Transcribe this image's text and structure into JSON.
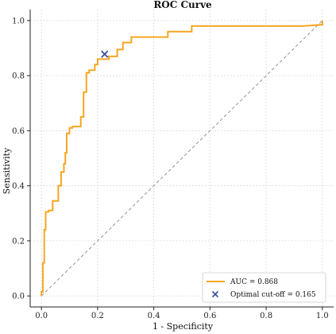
{
  "chart_data": {
    "type": "line",
    "title": "ROC Curve",
    "xlabel": "1 - Specificity",
    "ylabel": "Sensitivity",
    "xlim": [
      -0.04,
      1.04
    ],
    "ylim": [
      -0.04,
      1.04
    ],
    "grid": true,
    "legend_position": "bottom-right",
    "x_ticks": [
      0.0,
      0.2,
      0.4,
      0.6,
      0.8,
      1.0
    ],
    "y_ticks": [
      0.0,
      0.2,
      0.4,
      0.6,
      0.8,
      1.0
    ],
    "x_tick_labels": [
      "0.0",
      "0.2",
      "0.4",
      "0.6",
      "0.8",
      "1.0"
    ],
    "y_tick_labels": [
      "0.0",
      "0.2",
      "0.4",
      "0.6",
      "0.8",
      "1.0"
    ],
    "series": [
      {
        "name": "AUC = 0.868",
        "color": "#f5a623",
        "x": [
          0.0,
          0.0,
          0.005,
          0.005,
          0.01,
          0.01,
          0.015,
          0.015,
          0.025,
          0.025,
          0.04,
          0.04,
          0.06,
          0.06,
          0.07,
          0.07,
          0.08,
          0.08,
          0.085,
          0.085,
          0.09,
          0.09,
          0.1,
          0.1,
          0.11,
          0.11,
          0.14,
          0.14,
          0.15,
          0.15,
          0.16,
          0.16,
          0.17,
          0.17,
          0.19,
          0.19,
          0.2,
          0.2,
          0.24,
          0.24,
          0.27,
          0.27,
          0.29,
          0.29,
          0.32,
          0.32,
          0.45,
          0.45,
          0.535,
          0.535,
          0.93,
          1.0,
          1.0
        ],
        "y": [
          0.0,
          0.015,
          0.015,
          0.12,
          0.12,
          0.24,
          0.24,
          0.305,
          0.305,
          0.31,
          0.31,
          0.345,
          0.345,
          0.4,
          0.4,
          0.45,
          0.45,
          0.48,
          0.48,
          0.52,
          0.52,
          0.59,
          0.59,
          0.61,
          0.61,
          0.615,
          0.615,
          0.65,
          0.65,
          0.74,
          0.74,
          0.81,
          0.81,
          0.82,
          0.82,
          0.84,
          0.84,
          0.86,
          0.86,
          0.87,
          0.87,
          0.895,
          0.895,
          0.92,
          0.92,
          0.94,
          0.94,
          0.96,
          0.96,
          0.98,
          0.98,
          0.985,
          1.0
        ]
      }
    ],
    "reference_line": {
      "x": [
        0.0,
        1.0
      ],
      "y": [
        0.0,
        1.0
      ],
      "color": "#888888"
    },
    "optimal_point": {
      "name": "Optimal cut-off = 0.165",
      "x": 0.225,
      "y": 0.878,
      "color": "#3b4ea0"
    }
  }
}
